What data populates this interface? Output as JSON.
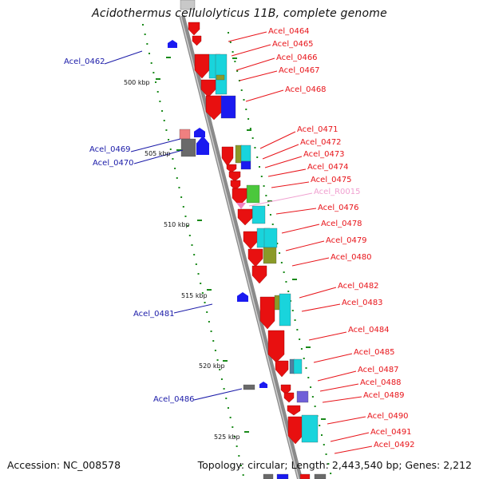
{
  "title": "Acidothermus cellulolyticus 11B, complete genome",
  "footer": {
    "accession": "Accession: NC_008578",
    "summary": "Topology: circular; Length: 2,443,540 bp; Genes: 2,212"
  },
  "colors": {
    "forward_label": "#e8141a",
    "reverse_label": "#1a1aa8",
    "rna_label": "#f0a0d0",
    "backbone": "#9a9a9a",
    "tick_dots": "#1a8a1a"
  },
  "kbp_ticks": [
    "500 kbp",
    "505 kbp",
    "510 kbp",
    "515 kbp",
    "520 kbp",
    "525 kbp"
  ],
  "genes": [
    {
      "label": "Acel_0462",
      "strand": "reverse"
    },
    {
      "label": "Acel_0464",
      "strand": "forward"
    },
    {
      "label": "Acel_0465",
      "strand": "forward"
    },
    {
      "label": "Acel_0466",
      "strand": "forward"
    },
    {
      "label": "Acel_0467",
      "strand": "forward"
    },
    {
      "label": "Acel_0468",
      "strand": "forward"
    },
    {
      "label": "Acel_0469",
      "strand": "reverse"
    },
    {
      "label": "Acel_0470",
      "strand": "reverse"
    },
    {
      "label": "Acel_0471",
      "strand": "forward"
    },
    {
      "label": "Acel_0472",
      "strand": "forward"
    },
    {
      "label": "Acel_0473",
      "strand": "forward"
    },
    {
      "label": "Acel_0474",
      "strand": "forward"
    },
    {
      "label": "Acel_0475",
      "strand": "forward"
    },
    {
      "label": "Acel_R0015",
      "strand": "rna"
    },
    {
      "label": "Acel_0476",
      "strand": "forward"
    },
    {
      "label": "Acel_0478",
      "strand": "forward"
    },
    {
      "label": "Acel_0479",
      "strand": "forward"
    },
    {
      "label": "Acel_0480",
      "strand": "forward"
    },
    {
      "label": "Acel_0481",
      "strand": "reverse"
    },
    {
      "label": "Acel_0482",
      "strand": "forward"
    },
    {
      "label": "Acel_0483",
      "strand": "forward"
    },
    {
      "label": "Acel_0484",
      "strand": "forward"
    },
    {
      "label": "Acel_0485",
      "strand": "forward"
    },
    {
      "label": "Acel_0486",
      "strand": "reverse"
    },
    {
      "label": "Acel_0487",
      "strand": "forward"
    },
    {
      "label": "Acel_0488",
      "strand": "forward"
    },
    {
      "label": "Acel_0489",
      "strand": "forward"
    },
    {
      "label": "Acel_0490",
      "strand": "forward"
    },
    {
      "label": "Acel_0491",
      "strand": "forward"
    },
    {
      "label": "Acel_0492",
      "strand": "forward"
    }
  ]
}
